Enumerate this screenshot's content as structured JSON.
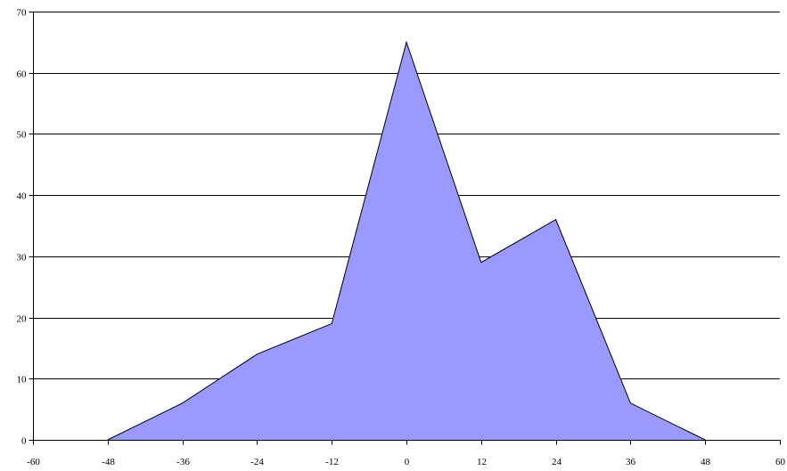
{
  "chart_data": {
    "type": "area",
    "x": [
      -48,
      -36,
      -24,
      -12,
      0,
      12,
      24,
      36,
      48
    ],
    "series": [
      {
        "values": [
          0,
          6,
          14,
          19,
          65,
          29,
          36,
          6,
          0
        ]
      }
    ],
    "xlim": [
      -60,
      60
    ],
    "ylim": [
      0,
      70
    ],
    "x_ticks": [
      -60,
      -48,
      -36,
      -24,
      -12,
      0,
      12,
      24,
      36,
      48,
      60
    ],
    "y_ticks": [
      0,
      10,
      20,
      30,
      40,
      50,
      60,
      70
    ],
    "grid": "horizontal",
    "legend": "none",
    "fill_color": "#9999ff",
    "line_color": "#000000",
    "gridline_color": "#000000",
    "title": "",
    "xlabel": "",
    "ylabel": ""
  }
}
